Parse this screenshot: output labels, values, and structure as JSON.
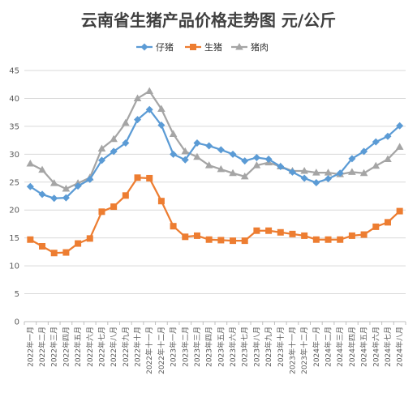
{
  "chart_data": {
    "type": "line",
    "title": "云南省生猪产品价格走势图    元/公斤",
    "xlabel": "",
    "ylabel": "",
    "ylim": [
      0,
      45
    ],
    "yticks": [
      0,
      5,
      10,
      15,
      20,
      25,
      30,
      35,
      40,
      45
    ],
    "grid": true,
    "legend_position": "top-center",
    "categories": [
      "2022年一月",
      "2022年二月",
      "2022年三月",
      "2022年四月",
      "2022年五月",
      "2022年六月",
      "2022年七月",
      "2022年八月",
      "2022年九月",
      "2022年十月",
      "2022年十一月",
      "2022年十二月",
      "2023年一月",
      "2023年二月",
      "2023年三月",
      "2023年四月",
      "2023年五月",
      "2023年六月",
      "2023年七月",
      "2023年八月",
      "2023年九月",
      "2023年十月",
      "2023年十一月",
      "2023年十二月",
      "2024年一月",
      "2024年二月",
      "2024年三月",
      "2024年四月",
      "2024年五月",
      "2024年六月",
      "2024年七月",
      "2024年八月"
    ],
    "series": [
      {
        "name": "仔猪",
        "color": "#5b9bd5",
        "marker": "diamond",
        "values": [
          24.2,
          22.8,
          22.1,
          22.2,
          24.3,
          25.5,
          28.9,
          30.5,
          32.0,
          36.2,
          38.0,
          35.2,
          30.0,
          29.0,
          32.0,
          31.5,
          30.8,
          30.0,
          28.8,
          29.4,
          29.1,
          27.8,
          26.8,
          25.7,
          24.9,
          25.6,
          26.6,
          29.2,
          30.5,
          32.2,
          33.2,
          35.1
        ]
      },
      {
        "name": "生猪",
        "color": "#ed7d31",
        "marker": "square",
        "values": [
          14.7,
          13.5,
          12.3,
          12.4,
          14.0,
          14.9,
          19.7,
          20.6,
          22.6,
          25.8,
          25.7,
          21.6,
          17.1,
          15.2,
          15.4,
          14.7,
          14.6,
          14.5,
          14.5,
          16.3,
          16.3,
          16.0,
          15.7,
          15.4,
          14.7,
          14.7,
          14.7,
          15.4,
          15.6,
          17.0,
          17.8,
          19.8
        ]
      },
      {
        "name": "猪肉",
        "color": "#a5a5a5",
        "marker": "triangle",
        "values": [
          28.3,
          27.2,
          24.8,
          23.8,
          24.8,
          25.8,
          31.0,
          32.7,
          35.6,
          40.0,
          41.3,
          38.1,
          33.6,
          30.5,
          29.5,
          28.0,
          27.3,
          26.6,
          26.0,
          28.0,
          28.5,
          27.8,
          27.0,
          27.0,
          26.7,
          26.7,
          26.4,
          26.8,
          26.6,
          27.9,
          29.1,
          31.3
        ]
      }
    ]
  }
}
